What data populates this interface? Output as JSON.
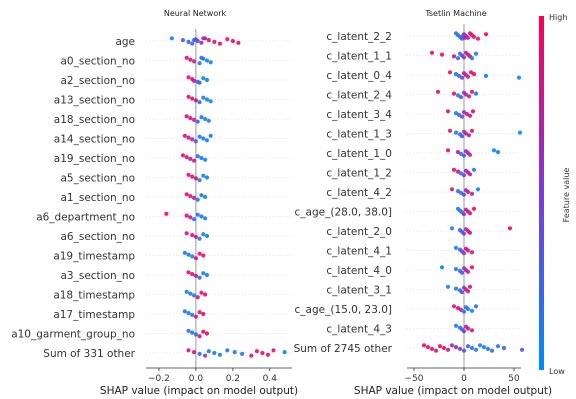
{
  "chart_data": [
    {
      "type": "scatter",
      "subtype": "shap-beeswarm",
      "title": "Neural Network",
      "xlabel": "SHAP value (impact on model output)",
      "xlim": [
        -0.27,
        0.52
      ],
      "xticks": [
        -0.2,
        0.0,
        0.2,
        0.4
      ],
      "xtick_labels": [
        "−0.2",
        "0.0",
        "0.2",
        "0.4"
      ],
      "features": [
        "age",
        "a0_section_no",
        "a2_section_no",
        "a13_section_no",
        "a18_section_no",
        "a14_section_no",
        "a19_section_no",
        "a5_section_no",
        "a1_section_no",
        "a6_department_no",
        "a6_section_no",
        "a19_timestamp",
        "a3_section_no",
        "a18_timestamp",
        "a17_timestamp",
        "a10_garment_group_no",
        "Sum of 331 other"
      ],
      "points": [
        [
          [
            -0.13,
            0.1
          ],
          [
            -0.07,
            0.3
          ],
          [
            -0.04,
            0.25
          ],
          [
            -0.02,
            0.2
          ],
          [
            0.0,
            0.35
          ],
          [
            0.01,
            0.4
          ],
          [
            0.03,
            0.6
          ],
          [
            0.05,
            0.8
          ],
          [
            0.07,
            0.85
          ],
          [
            0.1,
            0.9
          ],
          [
            0.13,
            0.95
          ],
          [
            0.17,
            0.9
          ],
          [
            0.2,
            1.0
          ],
          [
            0.23,
            0.95
          ],
          [
            0.04,
            0.55
          ],
          [
            -0.01,
            0.3
          ]
        ],
        [
          [
            -0.05,
            0.9
          ],
          [
            -0.03,
            0.85
          ],
          [
            -0.01,
            0.8
          ],
          [
            0.02,
            0.15
          ],
          [
            0.04,
            0.1
          ],
          [
            0.06,
            0.05
          ],
          [
            0.08,
            0.1
          ],
          [
            0.03,
            0.2
          ]
        ],
        [
          [
            -0.04,
            0.9
          ],
          [
            -0.02,
            0.85
          ],
          [
            -0.01,
            0.8
          ],
          [
            0.02,
            0.2
          ],
          [
            0.04,
            0.1
          ],
          [
            0.06,
            0.05
          ],
          [
            0.01,
            0.3
          ]
        ],
        [
          [
            -0.04,
            0.9
          ],
          [
            -0.02,
            0.85
          ],
          [
            0.0,
            0.8
          ],
          [
            0.02,
            0.15
          ],
          [
            0.04,
            0.1
          ],
          [
            0.06,
            0.05
          ],
          [
            0.08,
            0.1
          ]
        ],
        [
          [
            -0.05,
            0.9
          ],
          [
            -0.03,
            0.85
          ],
          [
            -0.01,
            0.8
          ],
          [
            0.01,
            0.2
          ],
          [
            0.03,
            0.1
          ],
          [
            0.05,
            0.05
          ],
          [
            0.07,
            0.1
          ]
        ],
        [
          [
            -0.06,
            0.9
          ],
          [
            -0.04,
            0.85
          ],
          [
            -0.02,
            0.8
          ],
          [
            0.0,
            0.3
          ],
          [
            0.02,
            0.15
          ],
          [
            0.04,
            0.1
          ],
          [
            0.06,
            0.05
          ],
          [
            0.08,
            0.1
          ]
        ],
        [
          [
            -0.07,
            0.9
          ],
          [
            -0.05,
            0.85
          ],
          [
            -0.03,
            0.8
          ],
          [
            -0.01,
            0.75
          ],
          [
            0.01,
            0.2
          ],
          [
            0.03,
            0.1
          ],
          [
            0.05,
            0.05
          ]
        ],
        [
          [
            -0.04,
            0.9
          ],
          [
            -0.02,
            0.85
          ],
          [
            0.0,
            0.8
          ],
          [
            0.02,
            0.2
          ],
          [
            0.04,
            0.1
          ],
          [
            0.06,
            0.05
          ]
        ],
        [
          [
            -0.05,
            0.9
          ],
          [
            -0.03,
            0.85
          ],
          [
            -0.01,
            0.8
          ],
          [
            0.01,
            0.2
          ],
          [
            0.03,
            0.1
          ],
          [
            0.05,
            0.05
          ]
        ],
        [
          [
            -0.16,
            1.0
          ],
          [
            -0.05,
            0.9
          ],
          [
            -0.03,
            0.85
          ],
          [
            -0.01,
            0.2
          ],
          [
            0.01,
            0.15
          ],
          [
            0.03,
            0.1
          ],
          [
            0.05,
            0.05
          ]
        ],
        [
          [
            -0.05,
            0.9
          ],
          [
            -0.02,
            0.85
          ],
          [
            0.0,
            0.8
          ],
          [
            0.02,
            0.2
          ],
          [
            0.04,
            0.1
          ],
          [
            0.06,
            0.05
          ]
        ],
        [
          [
            -0.06,
            0.15
          ],
          [
            -0.04,
            0.1
          ],
          [
            -0.02,
            0.05
          ],
          [
            0.0,
            0.85
          ],
          [
            0.02,
            0.9
          ],
          [
            0.04,
            0.95
          ]
        ],
        [
          [
            -0.04,
            0.9
          ],
          [
            -0.02,
            0.85
          ],
          [
            0.0,
            0.8
          ],
          [
            0.02,
            0.2
          ],
          [
            0.04,
            0.1
          ],
          [
            0.06,
            0.05
          ]
        ],
        [
          [
            -0.05,
            0.15
          ],
          [
            -0.03,
            0.1
          ],
          [
            -0.01,
            0.05
          ],
          [
            0.01,
            0.85
          ],
          [
            0.03,
            0.9
          ],
          [
            0.05,
            0.95
          ]
        ],
        [
          [
            -0.06,
            0.15
          ],
          [
            -0.04,
            0.1
          ],
          [
            -0.02,
            0.05
          ],
          [
            0.0,
            0.85
          ],
          [
            0.02,
            0.9
          ],
          [
            0.04,
            0.95
          ]
        ],
        [
          [
            -0.04,
            0.2
          ],
          [
            -0.02,
            0.15
          ],
          [
            0.0,
            0.1
          ],
          [
            0.02,
            0.85
          ],
          [
            0.04,
            0.9
          ],
          [
            0.06,
            0.95
          ]
        ],
        [
          [
            -0.04,
            0.9
          ],
          [
            -0.01,
            0.85
          ],
          [
            0.02,
            0.2
          ],
          [
            0.05,
            0.5
          ],
          [
            0.07,
            0.1
          ],
          [
            0.1,
            0.15
          ],
          [
            0.13,
            0.05
          ],
          [
            0.17,
            0.2
          ],
          [
            0.21,
            0.1
          ],
          [
            0.25,
            0.15
          ],
          [
            0.3,
            0.85
          ],
          [
            0.33,
            0.9
          ],
          [
            0.36,
            0.95
          ],
          [
            0.39,
            0.9
          ],
          [
            0.42,
            0.85
          ],
          [
            0.48,
            0.05
          ]
        ]
      ]
    },
    {
      "type": "scatter",
      "subtype": "shap-beeswarm",
      "title": "Tsetlin Machine",
      "xlabel": "SHAP value (impact on model output)",
      "xlim": [
        -57,
        57
      ],
      "xticks": [
        -50,
        0,
        50
      ],
      "xtick_labels": [
        "−50",
        "0",
        "50"
      ],
      "features": [
        "c_latent_2_2",
        "c_latent_1_1",
        "c_latent_0_4",
        "c_latent_2_4",
        "c_latent_3_4",
        "c_latent_1_3",
        "c_latent_1_0",
        "c_latent_1_2",
        "c_latent_4_2",
        "c_age_(28.0, 38.0]",
        "c_latent_2_0",
        "c_latent_4_1",
        "c_latent_4_0",
        "c_latent_3_1",
        "c_age_(15.0, 23.0]",
        "c_latent_4_3",
        "Sum of 2745 other"
      ],
      "points": [
        [
          [
            -8,
            0.2
          ],
          [
            -6,
            0.1
          ],
          [
            -4,
            0.15
          ],
          [
            -2,
            0.3
          ],
          [
            0,
            0.5
          ],
          [
            2,
            0.7
          ],
          [
            4,
            0.8
          ],
          [
            6,
            0.9
          ],
          [
            8,
            0.95
          ],
          [
            10,
            0.85
          ],
          [
            14,
            0.9
          ],
          [
            22,
            1.0
          ],
          [
            -1,
            0.4
          ],
          [
            1,
            0.6
          ]
        ],
        [
          [
            -32,
            0.95
          ],
          [
            -22,
            0.9
          ],
          [
            -10,
            0.85
          ],
          [
            -6,
            0.2
          ],
          [
            -4,
            0.1
          ],
          [
            -2,
            0.3
          ],
          [
            0,
            0.6
          ],
          [
            2,
            0.7
          ],
          [
            4,
            0.8
          ],
          [
            6,
            0.9
          ],
          [
            8,
            0.05
          ],
          [
            12,
            0.1
          ]
        ],
        [
          [
            -14,
            0.9
          ],
          [
            -8,
            0.1
          ],
          [
            -5,
            0.2
          ],
          [
            -2,
            0.4
          ],
          [
            0,
            0.6
          ],
          [
            2,
            0.8
          ],
          [
            4,
            0.85
          ],
          [
            7,
            0.9
          ],
          [
            10,
            0.95
          ],
          [
            22,
            0.05
          ],
          [
            55,
            0.0
          ]
        ],
        [
          [
            -26,
            0.95
          ],
          [
            -10,
            0.9
          ],
          [
            -6,
            0.1
          ],
          [
            -3,
            0.3
          ],
          [
            0,
            0.5
          ],
          [
            2,
            0.7
          ],
          [
            5,
            0.85
          ],
          [
            8,
            0.9
          ],
          [
            12,
            0.15
          ]
        ],
        [
          [
            -16,
            0.9
          ],
          [
            -8,
            0.1
          ],
          [
            -5,
            0.2
          ],
          [
            -2,
            0.4
          ],
          [
            0,
            0.6
          ],
          [
            3,
            0.8
          ],
          [
            6,
            0.85
          ],
          [
            9,
            0.95
          ]
        ],
        [
          [
            -14,
            0.9
          ],
          [
            -8,
            0.1
          ],
          [
            -4,
            0.2
          ],
          [
            -2,
            0.35
          ],
          [
            0,
            0.55
          ],
          [
            2,
            0.7
          ],
          [
            5,
            0.85
          ],
          [
            8,
            0.9
          ],
          [
            56,
            0.0
          ]
        ],
        [
          [
            -16,
            0.9
          ],
          [
            -6,
            0.85
          ],
          [
            -3,
            0.1
          ],
          [
            0,
            0.3
          ],
          [
            2,
            0.6
          ],
          [
            4,
            0.8
          ],
          [
            6,
            0.7
          ],
          [
            30,
            0.05
          ],
          [
            34,
            0.1
          ]
        ],
        [
          [
            -10,
            0.9
          ],
          [
            -6,
            0.85
          ],
          [
            -3,
            0.2
          ],
          [
            0,
            0.4
          ],
          [
            2,
            0.6
          ],
          [
            4,
            0.75
          ],
          [
            6,
            0.8
          ],
          [
            10,
            0.1
          ]
        ],
        [
          [
            -12,
            0.9
          ],
          [
            -6,
            0.1
          ],
          [
            -3,
            0.2
          ],
          [
            0,
            0.4
          ],
          [
            2,
            0.6
          ],
          [
            4,
            0.8
          ],
          [
            8,
            0.85
          ],
          [
            14,
            0.05
          ]
        ],
        [
          [
            -6,
            0.1
          ],
          [
            -4,
            0.15
          ],
          [
            -2,
            0.2
          ],
          [
            0,
            0.5
          ],
          [
            2,
            0.7
          ],
          [
            4,
            0.85
          ],
          [
            6,
            0.9
          ],
          [
            10,
            0.95
          ]
        ],
        [
          [
            -12,
            0.1
          ],
          [
            -4,
            0.15
          ],
          [
            -2,
            0.3
          ],
          [
            0,
            0.5
          ],
          [
            2,
            0.7
          ],
          [
            4,
            0.8
          ],
          [
            6,
            0.9
          ],
          [
            46,
            0.95
          ]
        ],
        [
          [
            -8,
            0.1
          ],
          [
            -4,
            0.2
          ],
          [
            -2,
            0.35
          ],
          [
            0,
            0.55
          ],
          [
            2,
            0.75
          ],
          [
            4,
            0.85
          ],
          [
            8,
            0.9
          ]
        ],
        [
          [
            -22,
            0.05
          ],
          [
            -8,
            0.1
          ],
          [
            -4,
            0.2
          ],
          [
            -2,
            0.3
          ],
          [
            0,
            0.5
          ],
          [
            2,
            0.7
          ],
          [
            4,
            0.8
          ],
          [
            8,
            0.9
          ]
        ],
        [
          [
            -16,
            0.05
          ],
          [
            -8,
            0.1
          ],
          [
            -4,
            0.2
          ],
          [
            -2,
            0.35
          ],
          [
            0,
            0.55
          ],
          [
            2,
            0.75
          ],
          [
            4,
            0.85
          ],
          [
            6,
            0.9
          ]
        ],
        [
          [
            -10,
            0.9
          ],
          [
            -6,
            0.85
          ],
          [
            -3,
            0.8
          ],
          [
            0,
            0.2
          ],
          [
            2,
            0.15
          ],
          [
            4,
            0.1
          ],
          [
            8,
            0.05
          ],
          [
            12,
            0.2
          ]
        ],
        [
          [
            -8,
            0.15
          ],
          [
            -4,
            0.1
          ],
          [
            -2,
            0.2
          ],
          [
            0,
            0.5
          ],
          [
            2,
            0.7
          ],
          [
            4,
            0.85
          ],
          [
            8,
            0.9
          ]
        ],
        [
          [
            -40,
            0.95
          ],
          [
            -36,
            0.9
          ],
          [
            -32,
            0.85
          ],
          [
            -28,
            0.9
          ],
          [
            -24,
            0.95
          ],
          [
            -20,
            0.85
          ],
          [
            -16,
            0.8
          ],
          [
            -12,
            0.7
          ],
          [
            -8,
            0.6
          ],
          [
            -4,
            0.5
          ],
          [
            0,
            0.4
          ],
          [
            4,
            0.3
          ],
          [
            8,
            0.2
          ],
          [
            12,
            0.15
          ],
          [
            16,
            0.1
          ],
          [
            20,
            0.05
          ],
          [
            24,
            0.1
          ],
          [
            28,
            0.2
          ],
          [
            34,
            0.15
          ],
          [
            40,
            0.25
          ],
          [
            58,
            0.3
          ]
        ]
      ]
    }
  ],
  "colorbar": {
    "label": "Feature value",
    "high": "High",
    "low": "Low",
    "low_color": "#008bfb",
    "high_color": "#ff0052"
  }
}
